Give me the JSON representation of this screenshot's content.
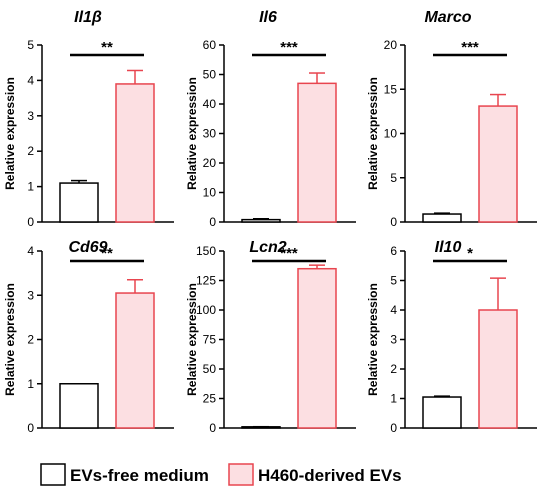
{
  "chart_data": [
    {
      "type": "bar",
      "title": "Il1β",
      "ylabel": "Relative expression",
      "categories": [
        "EVs-free medium",
        "H460-derived EVs"
      ],
      "values": [
        1.1,
        3.9
      ],
      "errors": [
        0.07,
        0.38
      ],
      "ylim": [
        0,
        5
      ],
      "yticks": [
        "0",
        "1",
        "2",
        "3",
        "4",
        "5"
      ],
      "significance": "**"
    },
    {
      "type": "bar",
      "title": "Il6",
      "ylabel": "Relative expression",
      "categories": [
        "EVs-free medium",
        "H460-derived EVs"
      ],
      "values": [
        0.8,
        47
      ],
      "errors": [
        0.3,
        3.5
      ],
      "ylim": [
        0,
        60
      ],
      "yticks": [
        "0",
        "10",
        "20",
        "30",
        "40",
        "50",
        "60"
      ],
      "significance": "***"
    },
    {
      "type": "bar",
      "title": "Marco",
      "ylabel": "Relative expression",
      "categories": [
        "EVs-free medium",
        "H460-derived EVs"
      ],
      "values": [
        0.9,
        13.1
      ],
      "errors": [
        0.1,
        1.3
      ],
      "ylim": [
        0,
        20
      ],
      "yticks": [
        "0",
        "5",
        "10",
        "15",
        "20"
      ],
      "significance": "***"
    },
    {
      "type": "bar",
      "title": "Cd69",
      "ylabel": "Relative expression",
      "categories": [
        "EVs-free medium",
        "H460-derived EVs"
      ],
      "values": [
        1.0,
        3.05
      ],
      "errors": [
        0.0,
        0.3
      ],
      "ylim": [
        0,
        4
      ],
      "yticks": [
        "0",
        "1",
        "2",
        "3",
        "4"
      ],
      "significance": "**"
    },
    {
      "type": "bar",
      "title": "Lcn2",
      "ylabel": "Relative expression",
      "categories": [
        "EVs-free medium",
        "H460-derived EVs"
      ],
      "values": [
        1.0,
        135
      ],
      "errors": [
        0.1,
        3
      ],
      "ylim": [
        0,
        150
      ],
      "yticks": [
        "0",
        "25",
        "50",
        "75",
        "100",
        "125",
        "150"
      ],
      "significance": "***"
    },
    {
      "type": "bar",
      "title": "Il10",
      "ylabel": "Relative expression",
      "categories": [
        "EVs-free medium",
        "H460-derived EVs"
      ],
      "values": [
        1.05,
        4.0
      ],
      "errors": [
        0.03,
        1.08
      ],
      "ylim": [
        0,
        6
      ],
      "yticks": [
        "0",
        "1",
        "2",
        "3",
        "4",
        "5",
        "6"
      ],
      "significance": "*"
    }
  ],
  "legend": [
    {
      "label": "EVs-free medium",
      "fill": "#ffffff",
      "stroke": "#000000"
    },
    {
      "label": "H460-derived EVs",
      "fill": "#fcdfe2",
      "stroke": "#e8454f"
    }
  ],
  "colors": {
    "control_fill": "#ffffff",
    "control_stroke": "#000000",
    "treated_fill": "#fcdfe2",
    "treated_stroke": "#e8454f"
  }
}
